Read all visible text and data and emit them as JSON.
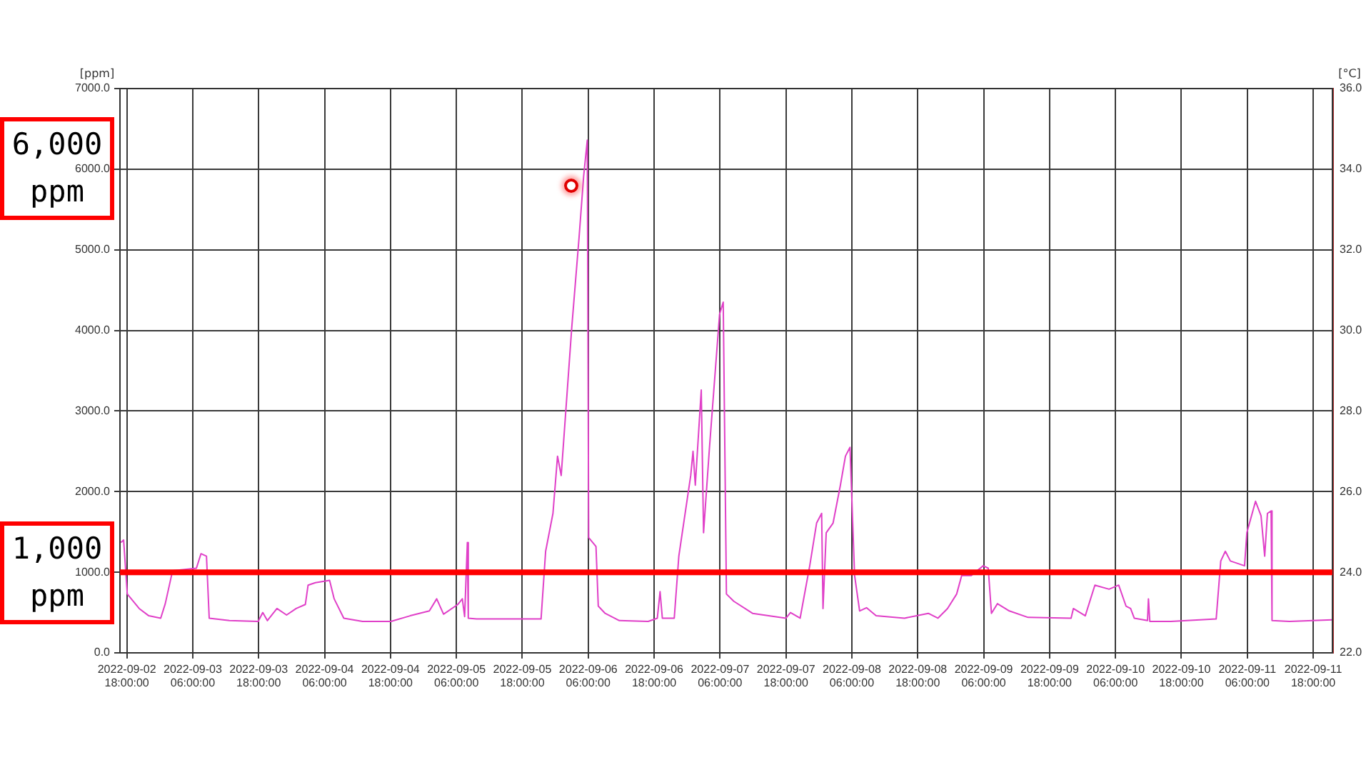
{
  "chart_data": {
    "type": "line",
    "ylabel": "[ppm]",
    "y2label": "[°C]",
    "x": [
      "2022-09-02T16:55",
      "2022-09-02T17:25",
      "2022-09-02T18:05",
      "2022-09-02T20:15",
      "2022-09-02T22:00",
      "2022-09-03T00:10",
      "2022-09-03T01:00",
      "2022-09-03T02:20",
      "2022-09-03T06:40",
      "2022-09-03T07:30",
      "2022-09-03T08:30",
      "2022-09-03T09:00",
      "2022-09-03T12:40",
      "2022-09-03T17:55",
      "2022-09-03T18:45",
      "2022-09-03T19:35",
      "2022-09-03T21:20",
      "2022-09-03T23:05",
      "2022-09-04T00:50",
      "2022-09-04T02:30",
      "2022-09-04T03:00",
      "2022-09-04T04:20",
      "2022-09-04T06:55",
      "2022-09-04T07:45",
      "2022-09-04T09:30",
      "2022-09-04T12:55",
      "2022-09-04T18:05",
      "2022-09-04T21:35",
      "2022-09-05T01:05",
      "2022-09-05T02:25",
      "2022-09-05T03:40",
      "2022-09-05T06:15",
      "2022-09-05T07:05",
      "2022-09-05T07:30",
      "2022-09-05T08:00",
      "2022-09-05T08:10",
      "2022-09-05T09:40",
      "2022-09-05T14:55",
      "2022-09-05T21:25",
      "2022-09-05T22:15",
      "2022-09-05T23:35",
      "2022-09-06T00:25",
      "2022-09-06T01:05",
      "2022-09-06T03:00",
      "2022-09-06T04:20",
      "2022-09-06T05:10",
      "2022-09-06T05:50",
      "2022-09-06T06:05",
      "2022-09-06T07:25",
      "2022-09-06T07:50",
      "2022-09-06T09:05",
      "2022-09-06T11:40",
      "2022-09-06T16:55",
      "2022-09-06T18:35",
      "2022-09-06T19:05",
      "2022-09-06T19:30",
      "2022-09-06T21:40",
      "2022-09-06T22:30",
      "2022-09-07T00:40",
      "2022-09-07T01:05",
      "2022-09-07T01:30",
      "2022-09-07T02:35",
      "2022-09-07T03:00",
      "2022-09-07T04:05",
      "2022-09-07T05:55",
      "2022-09-07T06:35",
      "2022-09-07T07:10",
      "2022-09-07T08:30",
      "2022-09-07T11:55",
      "2022-09-07T18:00",
      "2022-09-07T18:50",
      "2022-09-07T20:35",
      "2022-09-07T22:20",
      "2022-09-07T23:35",
      "2022-09-08T00:30",
      "2022-09-08T00:45",
      "2022-09-08T01:20",
      "2022-09-08T02:35",
      "2022-09-08T03:55",
      "2022-09-08T04:50",
      "2022-09-08T05:40",
      "2022-09-08T06:30",
      "2022-09-08T07:25",
      "2022-09-08T08:40",
      "2022-09-08T10:25",
      "2022-09-08T15:35",
      "2022-09-08T19:55",
      "2022-09-08T21:40",
      "2022-09-08T23:25",
      "2022-09-09T01:05",
      "2022-09-09T02:00",
      "2022-09-09T03:45",
      "2022-09-09T05:55",
      "2022-09-09T06:50",
      "2022-09-09T07:25",
      "2022-09-09T08:30",
      "2022-09-09T10:40",
      "2022-09-09T14:05",
      "2022-09-09T21:55",
      "2022-09-09T22:20",
      "2022-09-10T00:30",
      "2022-09-10T02:15",
      "2022-09-10T04:50",
      "2022-09-10T06:35",
      "2022-09-10T07:55",
      "2022-09-10T08:45",
      "2022-09-10T09:25",
      "2022-09-10T11:50",
      "2022-09-10T12:00",
      "2022-09-10T12:15",
      "2022-09-10T16:05",
      "2022-09-11T00:20",
      "2022-09-11T01:10",
      "2022-09-11T02:00",
      "2022-09-11T02:55",
      "2022-09-11T05:30",
      "2022-09-11T05:55",
      "2022-09-11T07:30",
      "2022-09-11T08:30",
      "2022-09-11T09:10",
      "2022-09-11T09:40",
      "2022-09-11T10:20",
      "2022-09-11T10:30",
      "2022-09-11T13:40",
      "2022-09-11T21:25"
    ],
    "series": [
      {
        "color": "#e040c8",
        "values": [
          1370,
          1400,
          730,
          550,
          460,
          430,
          610,
          1020,
          1050,
          1230,
          1200,
          430,
          400,
          390,
          500,
          400,
          550,
          470,
          550,
          600,
          840,
          870,
          900,
          670,
          430,
          390,
          390,
          460,
          520,
          670,
          480,
          600,
          670,
          450,
          1370,
          430,
          420,
          420,
          420,
          1260,
          1730,
          2440,
          2200,
          4030,
          5150,
          5910,
          6360,
          1430,
          1320,
          580,
          490,
          400,
          390,
          430,
          760,
          430,
          430,
          1200,
          2200,
          2500,
          2080,
          3260,
          1490,
          2550,
          4200,
          4350,
          730,
          640,
          490,
          430,
          500,
          430,
          1080,
          1610,
          1730,
          550,
          1490,
          1610,
          2080,
          2440,
          2550,
          960,
          520,
          560,
          460,
          430,
          490,
          430,
          550,
          730,
          960,
          960,
          1080,
          1050,
          490,
          610,
          520,
          440,
          430,
          550,
          460,
          840,
          790,
          840,
          580,
          550,
          430,
          400,
          670,
          390,
          390,
          420,
          1140,
          1260,
          1140,
          1080,
          1490,
          1880,
          1700,
          1200,
          1730,
          1760,
          400,
          390,
          410
        ]
      }
    ],
    "xlim": [
      "2022-09-02T16:45",
      "2022-09-11T21:30"
    ],
    "xticks": [
      {
        "value": "2022-09-02T18:00",
        "label": "2022-09-02 18:00:00"
      },
      {
        "value": "2022-09-03T06:00",
        "label": "2022-09-03 06:00:00"
      },
      {
        "value": "2022-09-03T18:00",
        "label": "2022-09-03 18:00:00"
      },
      {
        "value": "2022-09-04T06:00",
        "label": "2022-09-04 06:00:00"
      },
      {
        "value": "2022-09-04T18:00",
        "label": "2022-09-04 18:00:00"
      },
      {
        "value": "2022-09-05T06:00",
        "label": "2022-09-05 06:00:00"
      },
      {
        "value": "2022-09-05T18:00",
        "label": "2022-09-05 18:00:00"
      },
      {
        "value": "2022-09-06T06:00",
        "label": "2022-09-06 06:00:00"
      },
      {
        "value": "2022-09-06T18:00",
        "label": "2022-09-06 18:00:00"
      },
      {
        "value": "2022-09-07T06:00",
        "label": "2022-09-07 06:00:00"
      },
      {
        "value": "2022-09-07T18:00",
        "label": "2022-09-07 18:00:00"
      },
      {
        "value": "2022-09-08T06:00",
        "label": "2022-09-08 06:00:00"
      },
      {
        "value": "2022-09-08T18:00",
        "label": "2022-09-08 18:00:00"
      },
      {
        "value": "2022-09-09T06:00",
        "label": "2022-09-09 06:00:00"
      },
      {
        "value": "2022-09-09T18:00",
        "label": "2022-09-09 18:00:00"
      },
      {
        "value": "2022-09-10T06:00",
        "label": "2022-09-10 06:00:00"
      },
      {
        "value": "2022-09-10T18:00",
        "label": "2022-09-10 18:00:00"
      },
      {
        "value": "2022-09-11T06:00",
        "label": "2022-09-11 06:00:00"
      },
      {
        "value": "2022-09-11T18:00",
        "label": "2022-09-11 18:00:00"
      }
    ],
    "ylim": [
      0,
      7000
    ],
    "yticks": [
      {
        "value": 0,
        "label": "0.0"
      },
      {
        "value": 1000,
        "label": "1000.0"
      },
      {
        "value": 2000,
        "label": "2000.0"
      },
      {
        "value": 3000,
        "label": "3000.0"
      },
      {
        "value": 4000,
        "label": "4000.0"
      },
      {
        "value": 5000,
        "label": "5000.0"
      },
      {
        "value": 6000,
        "label": "6000.0"
      },
      {
        "value": 7000,
        "label": "7000.0"
      }
    ],
    "y2lim": [
      22,
      36
    ],
    "y2ticks": [
      {
        "value": 22,
        "label": "22.0"
      },
      {
        "value": 24,
        "label": "24.0"
      },
      {
        "value": 26,
        "label": "26.0"
      },
      {
        "value": 28,
        "label": "28.0"
      },
      {
        "value": 30,
        "label": "30.0"
      },
      {
        "value": 32,
        "label": "32.0"
      },
      {
        "value": 34,
        "label": "34.0"
      },
      {
        "value": 36,
        "label": "36.0"
      }
    ],
    "ref_lines": [
      {
        "axis": "y",
        "value": 1000,
        "label": "1,000\nppm",
        "color": "#ff0000"
      }
    ],
    "annotations": [
      "6,000\nppm"
    ],
    "grid": true,
    "legend": false,
    "marker": "none",
    "line_style": "solid"
  }
}
